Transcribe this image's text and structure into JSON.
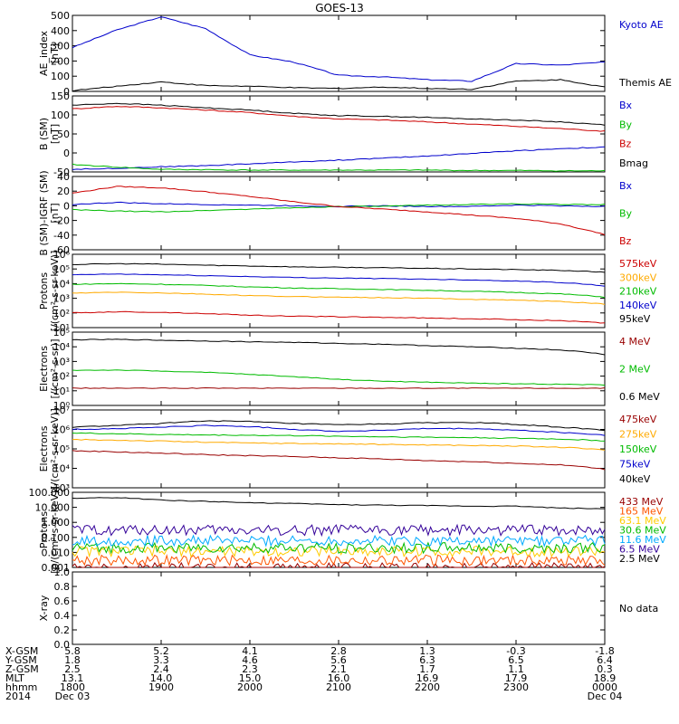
{
  "title": "GOES-13",
  "panels": [
    {
      "id": "ae",
      "ylabel": [
        "AE_index",
        "[nT]"
      ],
      "ticks": [
        "500",
        "400",
        "300",
        "200",
        "100",
        "0"
      ],
      "legend": [
        {
          "text": "Kyoto AE",
          "color": "#0000cc"
        },
        {
          "text": "Themis AE",
          "color": "#000000"
        }
      ]
    },
    {
      "id": "b",
      "ylabel": [
        "B (SM)",
        "[nT]"
      ],
      "ticks": [
        "150",
        "100",
        "50",
        "0",
        "-50"
      ],
      "legend": [
        {
          "text": "Bx",
          "color": "#0000cc"
        },
        {
          "text": "By",
          "color": "#00bb00"
        },
        {
          "text": "Bz",
          "color": "#cc0000"
        },
        {
          "text": "Bmag",
          "color": "#000000"
        }
      ]
    },
    {
      "id": "dbb",
      "ylabel": [
        "B (SM)-IGRF (SM)",
        "[nT]"
      ],
      "ticks": [
        "40",
        "20",
        "0",
        "-20",
        "-40",
        "-60"
      ],
      "legend": [
        {
          "text": "Bx",
          "color": "#0000cc"
        },
        {
          "text": "By",
          "color": "#00bb00"
        },
        {
          "text": "Bz",
          "color": "#cc0000"
        }
      ]
    },
    {
      "id": "protons1",
      "ylabel": [
        "Protons",
        "[/(cm²-s-sr-keV)]"
      ],
      "ticks": [
        "10⁶",
        "10⁵",
        "10⁴",
        "10³",
        "10²",
        "10¹"
      ],
      "legend": [
        {
          "text": "575keV",
          "color": "#cc0000"
        },
        {
          "text": "300keV",
          "color": "#ffaa00"
        },
        {
          "text": "210keV",
          "color": "#00bb00"
        },
        {
          "text": "140keV",
          "color": "#0000cc"
        },
        {
          "text": "95keV",
          "color": "#000000"
        }
      ]
    },
    {
      "id": "electrons1",
      "ylabel": [
        "Electrons",
        "[/(cm²-s-sr)]"
      ],
      "ticks": [
        "10⁵",
        "10⁴",
        "10³",
        "10²",
        "10¹",
        "10⁰"
      ],
      "legend": [
        {
          "text": "4 MeV",
          "color": "#990000"
        },
        {
          "text": "2 MeV",
          "color": "#00bb00"
        },
        {
          "text": "0.6 MeV",
          "color": "#000000"
        }
      ]
    },
    {
      "id": "electrons2",
      "ylabel": [
        "Electrons",
        "[/(cm²-s-sr-keV)]"
      ],
      "ticks": [
        "10⁷",
        "10⁶",
        "10⁵",
        "10⁴",
        "10³"
      ],
      "legend": [
        {
          "text": "475keV",
          "color": "#990000"
        },
        {
          "text": "275keV",
          "color": "#ffaa00"
        },
        {
          "text": "150keV",
          "color": "#00bb00"
        },
        {
          "text": "75keV",
          "color": "#0000cc"
        },
        {
          "text": "40keV",
          "color": "#000000"
        }
      ]
    },
    {
      "id": "protons2",
      "ylabel": [
        "Protons",
        "[p/(cm²-s-sr-keV)]"
      ],
      "ticks": [
        "100.000",
        "10.000",
        "1.000",
        "0.100",
        "0.010",
        "0.001"
      ],
      "legend": [
        {
          "text": "433 MeV",
          "color": "#990000"
        },
        {
          "text": "165 MeV",
          "color": "#ff5500"
        },
        {
          "text": "63.1 MeV",
          "color": "#ffcc00"
        },
        {
          "text": "30.6 MeV",
          "color": "#00bb00"
        },
        {
          "text": "11.6 MeV",
          "color": "#00aaff"
        },
        {
          "text": "6.5 MeV",
          "color": "#330099"
        },
        {
          "text": "2.5 MeV",
          "color": "#000000"
        }
      ]
    },
    {
      "id": "xray",
      "ylabel": [
        "X-ray",
        ""
      ],
      "ticks": [
        "1.0",
        "0.8",
        "0.6",
        "0.4",
        "0.2",
        "0.0"
      ],
      "legend": [
        {
          "text": "No data",
          "color": "#000000"
        }
      ]
    }
  ],
  "ephemeris": {
    "labels": [
      "X-GSM",
      "Y-GSM",
      "Z-GSM",
      "MLT",
      "hhmm",
      "2014"
    ],
    "columns": [
      [
        "5.8",
        "1.8",
        "2.5",
        "13.1",
        "1800",
        "Dec 03"
      ],
      [
        "5.2",
        "3.3",
        "2.4",
        "14.0",
        "1900",
        ""
      ],
      [
        "4.1",
        "4.6",
        "2.3",
        "15.0",
        "2000",
        ""
      ],
      [
        "2.8",
        "5.6",
        "2.1",
        "16.0",
        "2100",
        ""
      ],
      [
        "1.3",
        "6.3",
        "1.7",
        "16.9",
        "2200",
        ""
      ],
      [
        "-0.3",
        "6.5",
        "1.1",
        "17.9",
        "2300",
        ""
      ],
      [
        "-1.8",
        "6.4",
        "0.3",
        "18.9",
        "0000",
        "Dec 04"
      ]
    ]
  },
  "chart_data": {
    "type": "line",
    "title": "GOES-13",
    "x_unit": "UT hhmm",
    "xlim": [
      "2014-12-03 18:00",
      "2014-12-04 00:00"
    ],
    "x_ticks": [
      "1800",
      "1900",
      "2000",
      "2100",
      "2200",
      "2300",
      "0000"
    ],
    "x_hours": [
      18.0,
      18.5,
      19.0,
      19.5,
      20.0,
      20.5,
      21.0,
      21.5,
      22.0,
      22.5,
      23.0,
      23.5,
      24.0
    ],
    "panels": [
      {
        "ylabel": "AE_index [nT]",
        "ylim": [
          0,
          520
        ],
        "log": false,
        "series": [
          {
            "name": "Kyoto AE",
            "color": "#0000cc",
            "values": [
              300,
              420,
              510,
              430,
              250,
              200,
              110,
              100,
              80,
              70,
              190,
              180,
              200
            ]
          },
          {
            "name": "Themis AE",
            "color": "#000000",
            "values": [
              5,
              35,
              65,
              40,
              35,
              25,
              20,
              30,
              20,
              15,
              70,
              80,
              30
            ]
          }
        ]
      },
      {
        "ylabel": "B (SM) [nT]",
        "ylim": [
          -55,
          150
        ],
        "log": false,
        "series": [
          {
            "name": "Bx",
            "color": "#0000cc",
            "values": [
              -48,
              -45,
              -41,
              -38,
              -33,
              -28,
              -23,
              -18,
              -12,
              -5,
              2,
              8,
              12
            ]
          },
          {
            "name": "By",
            "color": "#00bb00",
            "values": [
              -35,
              -42,
              -48,
              -49,
              -50,
              -50,
              -50,
              -50,
              -50,
              -51,
              -51,
              -52,
              -52
            ]
          },
          {
            "name": "Bz",
            "color": "#cc0000",
            "values": [
              115,
              122,
              118,
              112,
              105,
              95,
              88,
              85,
              80,
              74,
              68,
              62,
              55
            ]
          },
          {
            "name": "Bmag",
            "color": "#000000",
            "values": [
              125,
              130,
              125,
              118,
              112,
              103,
              97,
              95,
              92,
              88,
              85,
              80,
              72
            ]
          }
        ]
      },
      {
        "ylabel": "B (SM)-IGRF (SM) [nT]",
        "ylim": [
          -65,
          45
        ],
        "log": false,
        "series": [
          {
            "name": "Bx",
            "color": "#0000cc",
            "values": [
              3,
              6,
              4,
              3,
              2,
              1,
              0,
              1,
              0,
              0,
              2,
              1,
              0
            ]
          },
          {
            "name": "By",
            "color": "#00bb00",
            "values": [
              -5,
              -7,
              -8,
              -6,
              -4,
              -2,
              0,
              0,
              2,
              3,
              4,
              3,
              3
            ]
          },
          {
            "name": "Bz",
            "color": "#cc0000",
            "values": [
              20,
              30,
              28,
              22,
              15,
              7,
              0,
              -4,
              -8,
              -13,
              -18,
              -26,
              -42
            ]
          }
        ]
      },
      {
        "ylabel": "Protons [/(cm²-s-sr-keV)]",
        "ylim": [
          10,
          1000000
        ],
        "log": true,
        "series": [
          {
            "name": "575keV",
            "color": "#cc0000",
            "values": [
              100,
              120,
              110,
              90,
              70,
              60,
              55,
              50,
              45,
              40,
              35,
              30,
              20
            ]
          },
          {
            "name": "300keV",
            "color": "#ffaa00",
            "values": [
              2200,
              2600,
              2300,
              1900,
              1500,
              1300,
              1200,
              1100,
              1000,
              850,
              750,
              600,
              400
            ]
          },
          {
            "name": "210keV",
            "color": "#00bb00",
            "values": [
              9000,
              10000,
              9000,
              7500,
              6000,
              5000,
              4500,
              4000,
              3500,
              3000,
              2500,
              2000,
              1200
            ]
          },
          {
            "name": "140keV",
            "color": "#0000cc",
            "values": [
              40000,
              45000,
              40000,
              35000,
              30000,
              26000,
              24000,
              22000,
              20000,
              18000,
              15000,
              12000,
              7000
            ]
          },
          {
            "name": "95keV",
            "color": "#000000",
            "values": [
              200000,
              230000,
              210000,
              180000,
              160000,
              140000,
              130000,
              120000,
              110000,
              100000,
              90000,
              80000,
              60000
            ]
          }
        ]
      },
      {
        "ylabel": "Electrons [/(cm²-s-sr)]",
        "ylim": [
          1,
          100000
        ],
        "log": true,
        "series": [
          {
            "name": "4 MeV",
            "color": "#990000",
            "values": [
              15,
              15,
              15,
              15,
              15,
              15,
              15,
              15,
              15,
              15,
              15,
              15,
              15
            ]
          },
          {
            "name": "2 MeV",
            "color": "#00bb00",
            "values": [
              250,
              260,
              220,
              180,
              130,
              90,
              60,
              45,
              38,
              33,
              30,
              28,
              25
            ]
          },
          {
            "name": "0.6 MeV",
            "color": "#000000",
            "values": [
              30000,
              32000,
              28000,
              25000,
              22000,
              20000,
              17000,
              15000,
              12000,
              10000,
              8000,
              6000,
              3000
            ]
          }
        ]
      },
      {
        "ylabel": "Electrons [/(cm²-s-sr-keV)]",
        "ylim": [
          1000,
          10000000
        ],
        "log": true,
        "series": [
          {
            "name": "475keV",
            "color": "#990000",
            "values": [
              80000,
              70000,
              60000,
              50000,
              45000,
              40000,
              35000,
              30000,
              25000,
              22000,
              18000,
              15000,
              9000
            ]
          },
          {
            "name": "275keV",
            "color": "#ffaa00",
            "values": [
              300000,
              280000,
              250000,
              220000,
              200000,
              190000,
              180000,
              170000,
              160000,
              150000,
              140000,
              120000,
              90000
            ]
          },
          {
            "name": "150keV",
            "color": "#00bb00",
            "values": [
              650000,
              600000,
              550000,
              520000,
              500000,
              480000,
              450000,
              420000,
              400000,
              380000,
              350000,
              320000,
              260000
            ]
          },
          {
            "name": "75keV",
            "color": "#0000cc",
            "values": [
              1000000,
              1100000,
              1300000,
              1600000,
              1400000,
              1000000,
              800000,
              900000,
              1100000,
              1100000,
              900000,
              700000,
              500000
            ]
          },
          {
            "name": "40keV",
            "color": "#000000",
            "values": [
              1300000,
              1600000,
              2000000,
              2800000,
              2500000,
              2000000,
              1700000,
              1900000,
              2200000,
              2300000,
              1800000,
              1300000,
              900000
            ]
          }
        ]
      },
      {
        "ylabel": "Protons [p/(cm²-s-sr-keV)]",
        "ylim": [
          0.001,
          100
        ],
        "log": true,
        "series": [
          {
            "name": "433 MeV",
            "color": "#990000",
            "values": [
              0.0009,
              0.0009,
              0.0009,
              0.0009,
              0.0009,
              0.0009,
              0.0009,
              0.0009,
              0.0009,
              0.0009,
              0.0009,
              0.0009,
              0.0009
            ]
          },
          {
            "name": "165 MeV",
            "color": "#ff5500",
            "values": [
              0.003,
              0.003,
              0.003,
              0.003,
              0.003,
              0.003,
              0.003,
              0.003,
              0.003,
              0.003,
              0.003,
              0.003,
              0.003
            ]
          },
          {
            "name": "63.1 MeV",
            "color": "#ffcc00",
            "values": [
              0.012,
              0.012,
              0.012,
              0.012,
              0.012,
              0.012,
              0.012,
              0.012,
              0.012,
              0.012,
              0.012,
              0.012,
              0.012
            ]
          },
          {
            "name": "30.6 MeV",
            "color": "#00bb00",
            "values": [
              0.02,
              0.02,
              0.02,
              0.02,
              0.02,
              0.02,
              0.02,
              0.02,
              0.02,
              0.02,
              0.02,
              0.02,
              0.02
            ]
          },
          {
            "name": "11.6 MeV",
            "color": "#00aaff",
            "values": [
              0.06,
              0.06,
              0.06,
              0.06,
              0.06,
              0.06,
              0.06,
              0.06,
              0.06,
              0.06,
              0.06,
              0.06,
              0.06
            ]
          },
          {
            "name": "6.5 MeV",
            "color": "#330099",
            "values": [
              0.3,
              0.3,
              0.3,
              0.3,
              0.3,
              0.3,
              0.3,
              0.3,
              0.3,
              0.3,
              0.3,
              0.3,
              0.3
            ]
          },
          {
            "name": "2.5 MeV",
            "color": "#000000",
            "values": [
              40,
              45,
              30,
              25,
              20,
              18,
              15,
              14,
              13,
              12,
              12,
              9,
              8
            ]
          }
        ]
      },
      {
        "ylabel": "X-ray",
        "ylim": [
          0,
          1
        ],
        "log": false,
        "series": []
      }
    ]
  }
}
